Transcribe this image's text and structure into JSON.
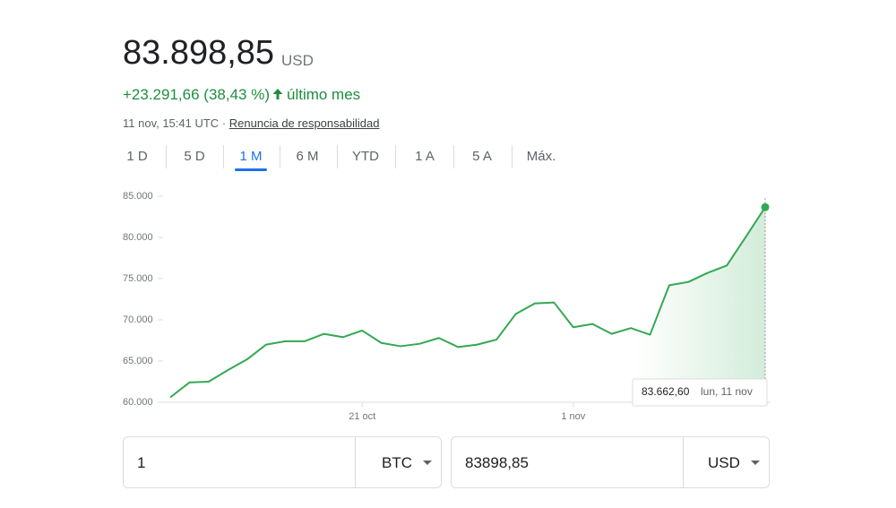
{
  "header": {
    "price": "83.898,85",
    "currency": "USD",
    "change": "+23.291,66 (38,43 %)",
    "period": "último mes",
    "timestamp": "11 nov, 15:41 UTC",
    "separator": "·",
    "disclaimer": "Renuncia de responsabilidad"
  },
  "tabs": {
    "items": [
      "1 D",
      "5 D",
      "1 M",
      "6 M",
      "YTD",
      "1 A",
      "5 A",
      "Máx."
    ],
    "active": 2
  },
  "chart_data": {
    "type": "line",
    "categories": [
      null,
      null,
      null,
      null,
      null,
      null,
      null,
      null,
      null,
      null,
      "21 oct",
      null,
      null,
      null,
      null,
      null,
      null,
      null,
      null,
      null,
      null,
      "1 nov",
      null,
      null,
      null,
      null,
      null,
      null,
      null,
      null,
      null,
      null
    ],
    "series": [
      {
        "name": "BTC/USD",
        "color": "#34a853",
        "values": [
          60600,
          62400,
          62500,
          63900,
          65200,
          67000,
          67400,
          67400,
          68300,
          67900,
          68700,
          67200,
          66800,
          67100,
          67800,
          66700,
          67000,
          67600,
          70700,
          72000,
          72100,
          69100,
          69500,
          68300,
          69000,
          68200,
          74200,
          74600,
          75700,
          76600,
          80100,
          83662.6
        ]
      }
    ],
    "ylim": [
      60000,
      85000
    ],
    "yticks": [
      {
        "value": 60000,
        "label": "60.000"
      },
      {
        "value": 65000,
        "label": "65.000"
      },
      {
        "value": 70000,
        "label": "70.000"
      },
      {
        "value": 75000,
        "label": "75.000"
      },
      {
        "value": 80000,
        "label": "80.000"
      },
      {
        "value": 85000,
        "label": "85.000"
      }
    ],
    "grid": false,
    "tooltip": {
      "value": "83.662,60",
      "date": "lun, 11 nov"
    }
  },
  "converter": {
    "amount": "1",
    "from": "BTC",
    "result": "83898,85",
    "to": "USD"
  }
}
